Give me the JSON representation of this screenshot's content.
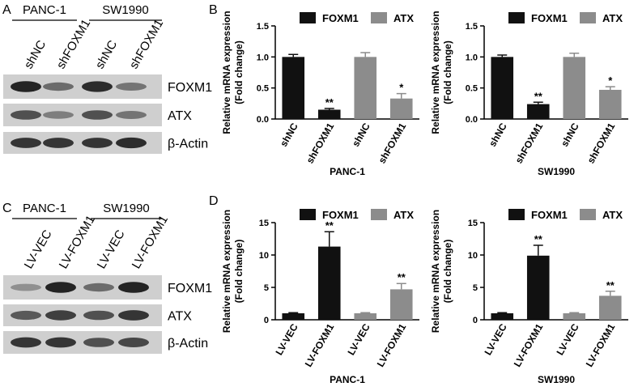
{
  "blots": [
    {
      "letter": "A",
      "groups": [
        "PANC-1",
        "SW1990"
      ],
      "lanes": [
        "shNC",
        "shFOXM1",
        "shNC",
        "shFOXM1"
      ],
      "bands": [
        "FOXM1",
        "ATX",
        "β-Actin"
      ]
    },
    {
      "letter": "C",
      "groups": [
        "PANC-1",
        "SW1990"
      ],
      "lanes": [
        "LV-VEC",
        "LV-FOXM1",
        "LV-VEC",
        "LV-FOXM1"
      ],
      "bands": [
        "FOXM1",
        "ATX",
        "β-Actin"
      ]
    }
  ],
  "chart_data": [
    {
      "type": "bar",
      "panel": "B",
      "ylabel": [
        "Relative mRNA expression",
        "(Fold change)"
      ],
      "xlabel": "PANC-1",
      "categories": [
        "shNC",
        "shFOXM1",
        "shNC",
        "shFOXM1"
      ],
      "ylim": [
        0,
        1.5
      ],
      "yticks": [
        {
          "value": 0,
          "label": "0.0"
        },
        {
          "value": 0.5,
          "label": "0.5"
        },
        {
          "value": 1,
          "label": "1.0"
        },
        {
          "value": 1.5,
          "label": "1.5"
        }
      ],
      "series": [
        {
          "name": "FOXM1",
          "color": "#111111",
          "values": [
            1.0,
            0.15,
            null,
            null
          ],
          "errors": [
            0.04,
            0.02,
            null,
            null
          ],
          "significance": [
            null,
            "**",
            null,
            null
          ]
        },
        {
          "name": "ATX",
          "color": "#8c8c8c",
          "values": [
            null,
            null,
            1.0,
            0.33
          ],
          "errors": [
            null,
            null,
            0.07,
            0.08
          ],
          "significance": [
            null,
            null,
            null,
            "*"
          ]
        }
      ]
    },
    {
      "type": "bar",
      "ylabel": [
        "Relative mRNA expression",
        "(Fold change)"
      ],
      "xlabel": "SW1990",
      "categories": [
        "shNC",
        "shFOXM1",
        "shNC",
        "shFOXM1"
      ],
      "ylim": [
        0,
        1.5
      ],
      "yticks": [
        {
          "value": 0,
          "label": "0.0"
        },
        {
          "value": 0.5,
          "label": "0.5"
        },
        {
          "value": 1,
          "label": "1.0"
        },
        {
          "value": 1.5,
          "label": "1.5"
        }
      ],
      "series": [
        {
          "name": "FOXM1",
          "color": "#111111",
          "values": [
            1.0,
            0.24,
            null,
            null
          ],
          "errors": [
            0.03,
            0.03,
            null,
            null
          ],
          "significance": [
            null,
            "**",
            null,
            null
          ]
        },
        {
          "name": "ATX",
          "color": "#8c8c8c",
          "values": [
            null,
            null,
            1.0,
            0.47
          ],
          "errors": [
            null,
            null,
            0.06,
            0.05
          ],
          "significance": [
            null,
            null,
            null,
            "*"
          ]
        }
      ]
    },
    {
      "type": "bar",
      "panel": "D",
      "ylabel": [
        "Relative mRNA expression",
        "(Fold change)"
      ],
      "xlabel": "PANC-1",
      "categories": [
        "LV-VEC",
        "LV-FOXM1",
        "LV-VEC",
        "LV-FOXM1"
      ],
      "ylim": [
        0,
        15
      ],
      "yticks": [
        0,
        5,
        10,
        15
      ],
      "series": [
        {
          "name": "FOXM1",
          "color": "#111111",
          "values": [
            1.0,
            11.3,
            null,
            null
          ],
          "errors": [
            0.1,
            2.3,
            null,
            null
          ],
          "significance": [
            null,
            "**",
            null,
            null
          ]
        },
        {
          "name": "ATX",
          "color": "#8c8c8c",
          "values": [
            null,
            null,
            1.0,
            4.7
          ],
          "errors": [
            null,
            null,
            0.1,
            0.9
          ],
          "significance": [
            null,
            null,
            null,
            "**"
          ]
        }
      ]
    },
    {
      "type": "bar",
      "ylabel": [
        "Relative mRNA expression",
        "(Fold change)"
      ],
      "xlabel": "SW1990",
      "categories": [
        "LV-VEC",
        "LV-FOXM1",
        "LV-VEC",
        "LV-FOXM1"
      ],
      "ylim": [
        0,
        15
      ],
      "yticks": [
        0,
        5,
        10,
        15
      ],
      "series": [
        {
          "name": "FOXM1",
          "color": "#111111",
          "values": [
            1.0,
            9.9,
            null,
            null
          ],
          "errors": [
            0.1,
            1.6,
            null,
            null
          ],
          "significance": [
            null,
            "**",
            null,
            null
          ]
        },
        {
          "name": "ATX",
          "color": "#8c8c8c",
          "values": [
            null,
            null,
            1.0,
            3.7
          ],
          "errors": [
            null,
            null,
            0.1,
            0.7
          ],
          "significance": [
            null,
            null,
            null,
            "**"
          ]
        }
      ]
    }
  ]
}
